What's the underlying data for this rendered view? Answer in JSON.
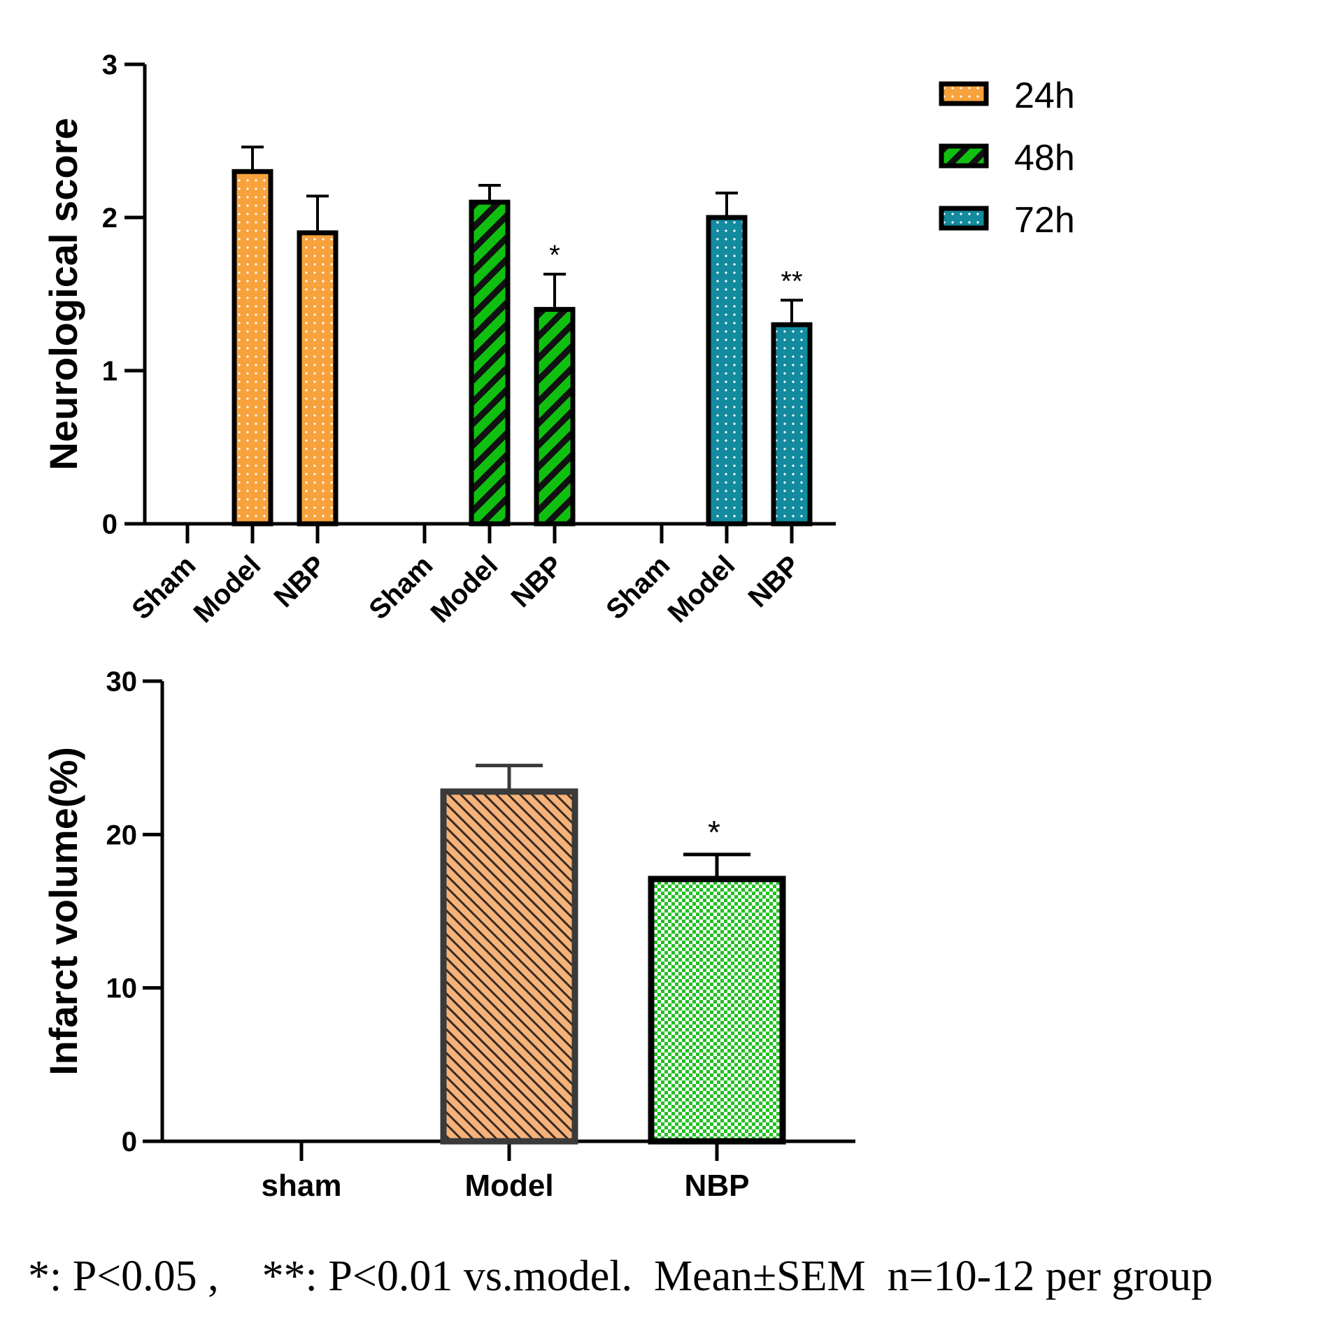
{
  "chart_data": [
    {
      "type": "bar",
      "ylabel": "Neurological score",
      "ylim": [
        0,
        3
      ],
      "yticks": [
        0,
        1,
        2,
        3
      ],
      "legend_position": "top-right",
      "colors": {
        "24h": "#F7A23C",
        "48h": "#10C010",
        "72h": "#138A9E"
      },
      "groups": [
        {
          "name": "24h",
          "categories": [
            "Sham",
            "Model",
            "NBP"
          ],
          "values": [
            0,
            2.3,
            1.9
          ],
          "errors": [
            0,
            0.16,
            0.24
          ],
          "sig": [
            "",
            "",
            ""
          ]
        },
        {
          "name": "48h",
          "categories": [
            "Sham",
            "Model",
            "NBP"
          ],
          "values": [
            0,
            2.1,
            1.4
          ],
          "errors": [
            0,
            0.11,
            0.23
          ],
          "sig": [
            "",
            "",
            "*"
          ]
        },
        {
          "name": "72h",
          "categories": [
            "Sham",
            "Model",
            "NBP"
          ],
          "values": [
            0,
            2.0,
            1.3
          ],
          "errors": [
            0,
            0.16,
            0.16
          ],
          "sig": [
            "",
            "",
            "**"
          ]
        }
      ],
      "legend": [
        "24h",
        "48h",
        "72h"
      ]
    },
    {
      "type": "bar",
      "ylabel": "Infarct volume(%)",
      "ylim": [
        0,
        30
      ],
      "yticks": [
        0,
        10,
        20,
        30
      ],
      "categories": [
        "sham",
        "Model",
        "NBP"
      ],
      "values": [
        0,
        22.8,
        17.1
      ],
      "errors": [
        0,
        1.7,
        1.6
      ],
      "sig": [
        "",
        "",
        "*"
      ],
      "colors": {
        "Model": "#F5B27A",
        "NBP": "#22C022"
      }
    }
  ],
  "footnote": "*: P<0.05 ,    **: P<0.01 vs.model.  Mean±SEM  n=10-12 per group"
}
